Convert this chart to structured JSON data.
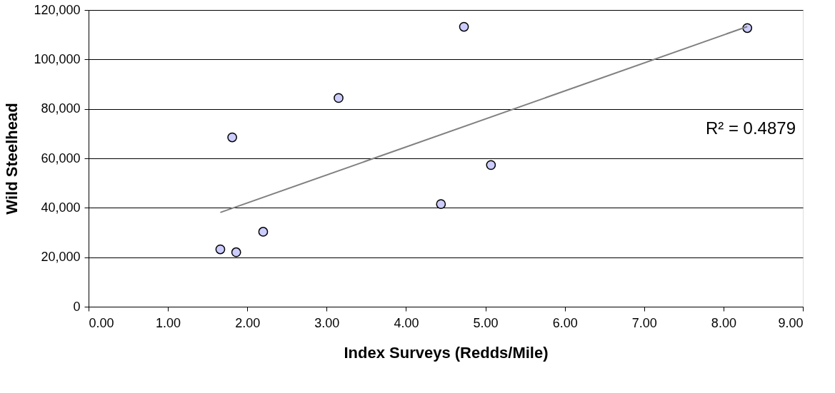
{
  "chart_data": {
    "type": "scatter",
    "xlabel": "Index Surveys (Redds/Mile)",
    "ylabel": "Wild Steelhead",
    "series": [
      {
        "color": "#ccccff",
        "marker": "circle",
        "x": [
          1.66,
          1.86,
          2.2,
          1.81,
          3.15,
          4.73,
          8.3,
          5.07,
          4.44
        ],
        "values": [
          23200,
          22000,
          30300,
          68500,
          84400,
          113200,
          112700,
          57300,
          41500
        ]
      },
      {
        "type": "line",
        "color": "#808080",
        "marker": "none",
        "x": [
          1.66,
          8.3
        ],
        "values": [
          38100,
          113300
        ]
      }
    ],
    "annotations": [
      "R² = 0.4879"
    ],
    "xlim": [
      0,
      9
    ],
    "ylim": [
      0,
      120000
    ],
    "xticks": [
      {
        "value": 0,
        "label": "0.00"
      },
      {
        "value": 1,
        "label": "1.00"
      },
      {
        "value": 2,
        "label": "2.00"
      },
      {
        "value": 3,
        "label": "3.00"
      },
      {
        "value": 4,
        "label": "4.00"
      },
      {
        "value": 5,
        "label": "5.00"
      },
      {
        "value": 6,
        "label": "6.00"
      },
      {
        "value": 7,
        "label": "7.00"
      },
      {
        "value": 8,
        "label": "8.00"
      },
      {
        "value": 9,
        "label": "9.00"
      }
    ],
    "yticks": [
      0,
      {
        "value": 20000,
        "label": "20,000"
      },
      {
        "value": 40000,
        "label": "40,000"
      },
      {
        "value": 60000,
        "label": "60,000"
      },
      {
        "value": 80000,
        "label": "80,000"
      },
      {
        "value": 100000,
        "label": "100,000"
      },
      {
        "value": 120000,
        "label": "120,000"
      }
    ],
    "grid": "y"
  }
}
